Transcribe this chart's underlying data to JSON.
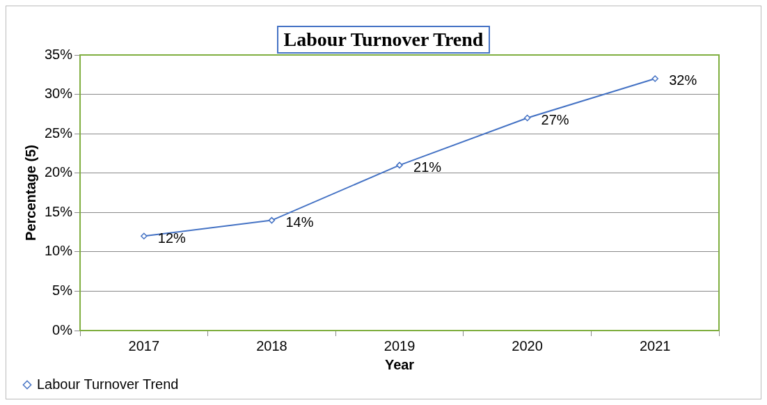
{
  "chart_data": {
    "type": "line",
    "title": "Labour Turnover Trend",
    "xlabel": "Year",
    "ylabel": "Percentage (5)",
    "categories": [
      "2017",
      "2018",
      "2019",
      "2020",
      "2021"
    ],
    "series": [
      {
        "name": "Labour Turnover Trend",
        "color": "#4472c4",
        "values": [
          12,
          14,
          21,
          27,
          32
        ],
        "value_labels": [
          "12%",
          "14%",
          "21%",
          "27%",
          "32%"
        ]
      }
    ],
    "ylim": [
      0,
      35
    ],
    "yticks": [
      {
        "value": 0,
        "label": "0%"
      },
      {
        "value": 5,
        "label": "5%"
      },
      {
        "value": 10,
        "label": "10%"
      },
      {
        "value": 15,
        "label": "15%"
      },
      {
        "value": 20,
        "label": "20%"
      },
      {
        "value": 25,
        "label": "25%"
      },
      {
        "value": 30,
        "label": "30%"
      },
      {
        "value": 35,
        "label": "35%"
      }
    ],
    "grid": "y",
    "legend": "bottom left",
    "marker": "diamond",
    "line_style": "solid"
  }
}
